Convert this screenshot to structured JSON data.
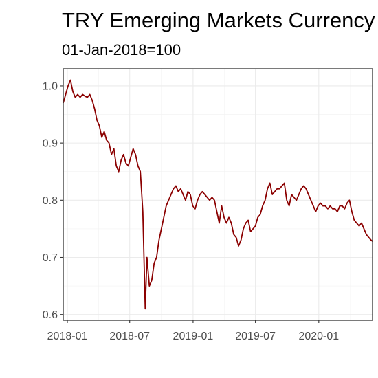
{
  "chart_data": {
    "type": "line",
    "title": "TRY Emerging Markets Currency Index",
    "subtitle": "01-Jan-2018=100",
    "xlabel": "",
    "ylabel": "",
    "x_ticks": [
      "2018-01",
      "2018-07",
      "2019-01",
      "2019-07",
      "2020-01"
    ],
    "y_ticks": [
      "0.6",
      "0.7",
      "0.8",
      "0.9",
      "1.0"
    ],
    "xlim": [
      "2017-12-20",
      "2020-06-05"
    ],
    "ylim": [
      0.59,
      1.03
    ],
    "grid": true,
    "legend": "none",
    "line_color": "#8b0000",
    "series": [
      {
        "x": [
          "2017-12-20",
          "2017-12-27",
          "2018-01-03",
          "2018-01-10",
          "2018-01-17",
          "2018-01-24",
          "2018-01-31",
          "2018-02-07",
          "2018-02-14",
          "2018-02-21",
          "2018-02-28",
          "2018-03-07",
          "2018-03-14",
          "2018-03-21",
          "2018-03-28",
          "2018-04-04",
          "2018-04-11",
          "2018-04-18",
          "2018-04-25",
          "2018-05-02",
          "2018-05-09",
          "2018-05-16",
          "2018-05-23",
          "2018-05-30",
          "2018-06-06",
          "2018-06-13",
          "2018-06-20",
          "2018-06-27",
          "2018-07-04",
          "2018-07-11",
          "2018-07-18",
          "2018-07-25",
          "2018-08-01",
          "2018-08-08",
          "2018-08-13",
          "2018-08-15",
          "2018-08-20",
          "2018-08-27",
          "2018-09-03",
          "2018-09-10",
          "2018-09-17",
          "2018-09-24",
          "2018-10-01",
          "2018-10-08",
          "2018-10-15",
          "2018-10-22",
          "2018-10-29",
          "2018-11-05",
          "2018-11-12",
          "2018-11-19",
          "2018-11-26",
          "2018-12-03",
          "2018-12-10",
          "2018-12-17",
          "2018-12-24",
          "2018-12-31",
          "2019-01-07",
          "2019-01-14",
          "2019-01-21",
          "2019-01-28",
          "2019-02-04",
          "2019-02-11",
          "2019-02-18",
          "2019-02-25",
          "2019-03-04",
          "2019-03-11",
          "2019-03-18",
          "2019-03-25",
          "2019-04-01",
          "2019-04-08",
          "2019-04-15",
          "2019-04-22",
          "2019-04-29",
          "2019-05-06",
          "2019-05-13",
          "2019-05-20",
          "2019-05-27",
          "2019-06-03",
          "2019-06-10",
          "2019-06-17",
          "2019-06-24",
          "2019-07-01",
          "2019-07-08",
          "2019-07-15",
          "2019-07-22",
          "2019-07-29",
          "2019-08-05",
          "2019-08-12",
          "2019-08-19",
          "2019-08-26",
          "2019-09-02",
          "2019-09-09",
          "2019-09-16",
          "2019-09-23",
          "2019-09-30",
          "2019-10-07",
          "2019-10-14",
          "2019-10-21",
          "2019-10-28",
          "2019-11-04",
          "2019-11-11",
          "2019-11-18",
          "2019-11-25",
          "2019-12-02",
          "2019-12-09",
          "2019-12-16",
          "2019-12-23",
          "2019-12-30",
          "2020-01-06",
          "2020-01-13",
          "2020-01-20",
          "2020-01-27",
          "2020-02-03",
          "2020-02-10",
          "2020-02-17",
          "2020-02-24",
          "2020-03-02",
          "2020-03-09",
          "2020-03-16",
          "2020-03-23",
          "2020-03-30",
          "2020-04-06",
          "2020-04-13",
          "2020-04-20",
          "2020-04-27",
          "2020-05-04",
          "2020-05-11",
          "2020-05-18",
          "2020-05-25",
          "2020-06-01",
          "2020-06-05"
        ],
        "y": [
          0.97,
          0.985,
          1.0,
          1.01,
          0.99,
          0.98,
          0.985,
          0.98,
          0.985,
          0.982,
          0.98,
          0.985,
          0.975,
          0.96,
          0.94,
          0.93,
          0.91,
          0.92,
          0.905,
          0.9,
          0.88,
          0.89,
          0.86,
          0.85,
          0.87,
          0.88,
          0.865,
          0.86,
          0.875,
          0.89,
          0.88,
          0.86,
          0.85,
          0.78,
          0.66,
          0.61,
          0.7,
          0.65,
          0.66,
          0.69,
          0.7,
          0.73,
          0.75,
          0.77,
          0.79,
          0.8,
          0.81,
          0.82,
          0.825,
          0.815,
          0.82,
          0.81,
          0.8,
          0.815,
          0.81,
          0.79,
          0.785,
          0.8,
          0.81,
          0.815,
          0.81,
          0.805,
          0.8,
          0.805,
          0.8,
          0.78,
          0.76,
          0.79,
          0.77,
          0.76,
          0.77,
          0.76,
          0.74,
          0.735,
          0.72,
          0.73,
          0.75,
          0.76,
          0.765,
          0.745,
          0.75,
          0.755,
          0.77,
          0.775,
          0.79,
          0.8,
          0.82,
          0.83,
          0.81,
          0.815,
          0.82,
          0.82,
          0.825,
          0.83,
          0.8,
          0.79,
          0.81,
          0.805,
          0.8,
          0.81,
          0.82,
          0.825,
          0.82,
          0.81,
          0.8,
          0.79,
          0.78,
          0.79,
          0.795,
          0.79,
          0.79,
          0.785,
          0.79,
          0.785,
          0.785,
          0.78,
          0.79,
          0.79,
          0.785,
          0.795,
          0.8,
          0.78,
          0.765,
          0.76,
          0.755,
          0.76,
          0.75,
          0.74,
          0.735,
          0.73,
          0.728
        ]
      }
    ]
  }
}
